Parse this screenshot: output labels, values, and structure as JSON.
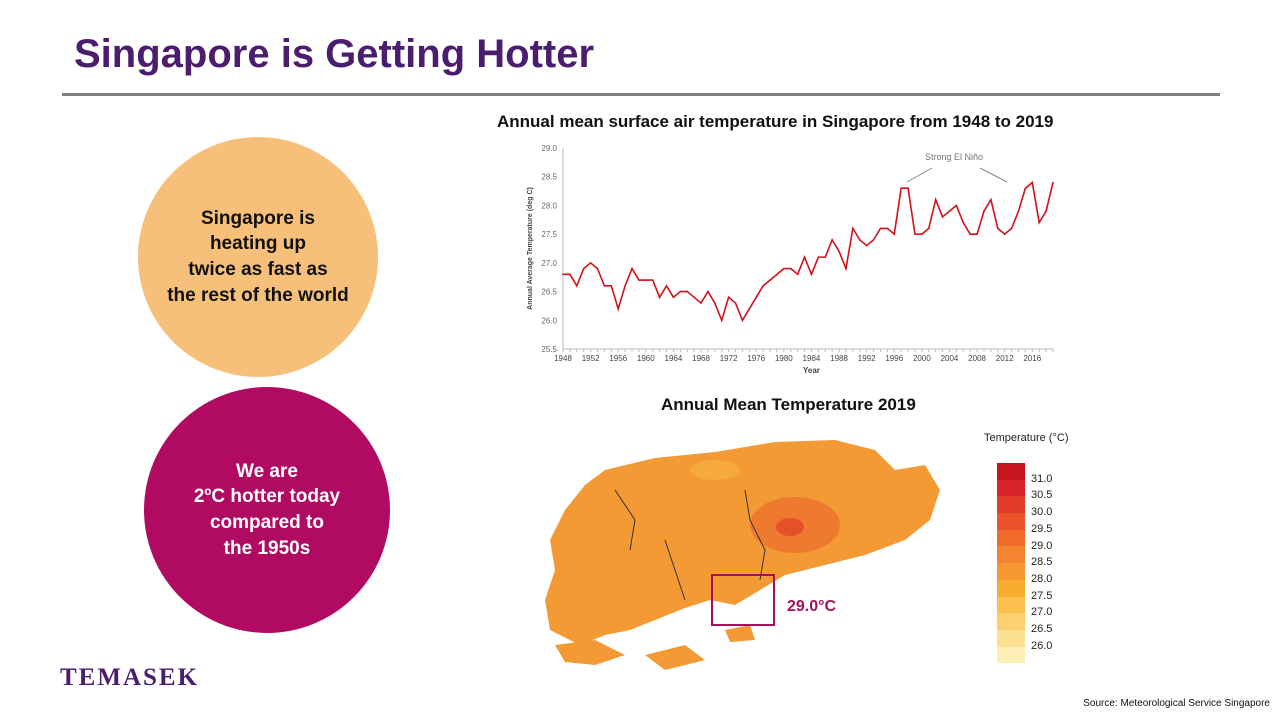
{
  "title": "Singapore is Getting Hotter",
  "circle1": [
    "Singapore is",
    "heating up",
    "twice as fast as",
    "the rest of the world"
  ],
  "circle2": [
    "We are",
    "2ºC hotter today",
    "compared to",
    "the 1950s"
  ],
  "logo": "TEMASEK",
  "source": "Source: Meteorological Service Singapore",
  "chart_data": [
    {
      "type": "line",
      "title": "Annual mean surface air temperature in Singapore from 1948 to 2019",
      "xlabel": "Year",
      "ylabel": "Annual Average Temperature (deg C)",
      "ylim": [
        25.5,
        29.0
      ],
      "xlim": [
        1948,
        2019
      ],
      "yticks": [
        "25.5",
        "26.0",
        "26.5",
        "27.0",
        "27.5",
        "28.0",
        "28.5",
        "29.0"
      ],
      "xticks": [
        "1948",
        "1952",
        "1956",
        "1960",
        "1964",
        "1968",
        "1972",
        "1976",
        "1980",
        "1984",
        "1988",
        "1992",
        "1996",
        "2000",
        "2004",
        "2008",
        "2012",
        "2016"
      ],
      "annotation": "Strong El Niño",
      "color": "#d0121b",
      "x_start": 1948,
      "values": [
        26.8,
        26.8,
        26.6,
        26.9,
        27.0,
        26.9,
        26.6,
        26.6,
        26.2,
        26.6,
        26.9,
        26.7,
        26.7,
        26.7,
        26.4,
        26.6,
        26.4,
        26.5,
        26.5,
        26.4,
        26.3,
        26.5,
        26.3,
        26.0,
        26.4,
        26.3,
        26.0,
        26.2,
        26.4,
        26.6,
        26.7,
        26.8,
        26.9,
        26.9,
        26.8,
        27.1,
        26.8,
        27.1,
        27.1,
        27.4,
        27.2,
        26.9,
        27.6,
        27.4,
        27.3,
        27.4,
        27.6,
        27.6,
        27.5,
        28.3,
        28.3,
        27.5,
        27.5,
        27.6,
        28.1,
        27.8,
        27.9,
        28.0,
        27.7,
        27.5,
        27.5,
        27.9,
        28.1,
        27.6,
        27.5,
        27.6,
        27.9,
        28.3,
        28.4,
        27.7,
        27.9,
        28.4
      ]
    },
    {
      "type": "heatmap",
      "title": "Annual Mean Temperature 2019",
      "legend_title": "Temperature (°C)",
      "legend_labels": [
        "31.0",
        "30.5",
        "30.0",
        "29.5",
        "29.0",
        "28.5",
        "28.0",
        "27.5",
        "27.0",
        "26.5",
        "26.0"
      ],
      "legend_colors": [
        "#c4161c",
        "#d9252a",
        "#e33b2a",
        "#ea532b",
        "#ef6a2b",
        "#f38430",
        "#f6982f",
        "#f9ad30",
        "#fbc04f",
        "#fcd06f",
        "#fde08f",
        "#fdefb5"
      ],
      "highlight_label": "29.0°C"
    }
  ]
}
